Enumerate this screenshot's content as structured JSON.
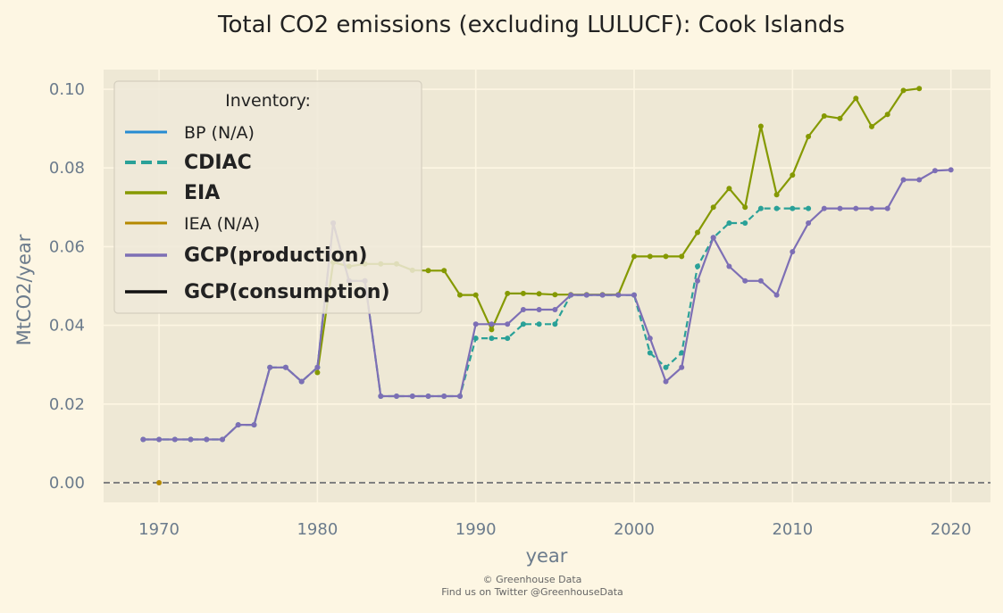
{
  "chart_data": {
    "type": "line",
    "title": "Total CO2 emissions (excluding LULUCF): Cook Islands",
    "xlabel": "year",
    "ylabel": "MtCO2/year",
    "xlim": [
      1966.5,
      2022.5
    ],
    "ylim": [
      -0.005,
      0.105
    ],
    "xticks": [
      1970,
      1980,
      1990,
      2000,
      2010,
      2020
    ],
    "yticks": [
      0.0,
      0.02,
      0.04,
      0.06,
      0.08,
      0.1
    ],
    "xtick_labels": [
      "1970",
      "1980",
      "1990",
      "2000",
      "2010",
      "2020"
    ],
    "ytick_labels": [
      "0.00",
      "0.02",
      "0.04",
      "0.06",
      "0.08",
      "0.10"
    ],
    "grid": true,
    "zero_line": true,
    "legend": {
      "title": "Inventory:",
      "placement": "top-left",
      "entries": [
        {
          "label": "BP (N/A)",
          "color": "#268bd2",
          "style": "solid",
          "bold": false
        },
        {
          "label": "CDIAC",
          "color": "#2aa198",
          "style": "dashed",
          "bold": true
        },
        {
          "label": "EIA",
          "color": "#859900",
          "style": "solid",
          "bold": true
        },
        {
          "label": "IEA (N/A)",
          "color": "#b58900",
          "style": "solid",
          "bold": false
        },
        {
          "label": "GCP(production)",
          "color": "#7d6fb5",
          "style": "solid",
          "bold": true
        },
        {
          "label": "GCP(consumption)",
          "color": "#111111",
          "style": "solid",
          "bold": true
        }
      ]
    },
    "series": [
      {
        "name": "CDIAC",
        "color": "#2aa198",
        "style": "dashed",
        "x": [
          1969,
          1970,
          1971,
          1972,
          1973,
          1974,
          1975,
          1976,
          1977,
          1978,
          1979,
          1980,
          1981,
          1982,
          1983,
          1984,
          1985,
          1986,
          1987,
          1988,
          1989,
          1990,
          1991,
          1992,
          1993,
          1994,
          1995,
          1996,
          1997,
          1998,
          1999,
          2000,
          2001,
          2002,
          2003,
          2004,
          2005,
          2006,
          2007,
          2008,
          2009,
          2010,
          2011
        ],
        "y": [
          0.011,
          0.011,
          0.011,
          0.011,
          0.011,
          0.011,
          0.0147,
          0.0147,
          0.0293,
          0.0293,
          0.0257,
          0.0293,
          0.066,
          0.0513,
          0.0513,
          0.022,
          0.022,
          0.022,
          0.022,
          0.022,
          0.022,
          0.0367,
          0.0367,
          0.0367,
          0.0403,
          0.0403,
          0.0403,
          0.0477,
          0.0477,
          0.0477,
          0.0477,
          0.0477,
          0.033,
          0.0293,
          0.033,
          0.055,
          0.0623,
          0.066,
          0.066,
          0.0697,
          0.0697,
          0.0697,
          0.0697
        ]
      },
      {
        "name": "EIA",
        "color": "#859900",
        "style": "solid",
        "x": [
          1980,
          1981,
          1982,
          1983,
          1984,
          1985,
          1986,
          1987,
          1988,
          1989,
          1990,
          1991,
          1992,
          1993,
          1994,
          1995,
          1996,
          1997,
          1998,
          1999,
          2000,
          2001,
          2002,
          2003,
          2004,
          2005,
          2006,
          2007,
          2008,
          2009,
          2010,
          2011,
          2012,
          2013,
          2014,
          2015,
          2016,
          2017,
          2018
        ],
        "y": [
          0.028,
          0.056,
          0.055,
          0.0556,
          0.0556,
          0.0556,
          0.054,
          0.0539,
          0.0539,
          0.0477,
          0.0477,
          0.0389,
          0.0481,
          0.0481,
          0.048,
          0.0478,
          0.0478,
          0.0478,
          0.0478,
          0.0478,
          0.0575,
          0.0575,
          0.0575,
          0.0575,
          0.0636,
          0.07,
          0.0748,
          0.07,
          0.0906,
          0.0732,
          0.0782,
          0.088,
          0.0932,
          0.0926,
          0.0977,
          0.0905,
          0.0936,
          0.0997,
          0.1002
        ]
      },
      {
        "name": "IEA (N/A)",
        "color": "#b58900",
        "style": "points",
        "x": [
          1970
        ],
        "y": [
          0.0
        ]
      },
      {
        "name": "GCP(production)",
        "color": "#7d6fb5",
        "style": "solid",
        "x": [
          1969,
          1970,
          1971,
          1972,
          1973,
          1974,
          1975,
          1976,
          1977,
          1978,
          1979,
          1980,
          1981,
          1982,
          1983,
          1984,
          1985,
          1986,
          1987,
          1988,
          1989,
          1990,
          1991,
          1992,
          1993,
          1994,
          1995,
          1996,
          1997,
          1998,
          1999,
          2000,
          2001,
          2002,
          2003,
          2004,
          2005,
          2006,
          2007,
          2008,
          2009,
          2010,
          2011,
          2012,
          2013,
          2014,
          2015,
          2016,
          2017,
          2018,
          2019,
          2020
        ],
        "y": [
          0.011,
          0.011,
          0.011,
          0.011,
          0.011,
          0.011,
          0.0147,
          0.0147,
          0.0293,
          0.0293,
          0.0257,
          0.0293,
          0.066,
          0.0513,
          0.0513,
          0.022,
          0.022,
          0.022,
          0.022,
          0.022,
          0.022,
          0.0403,
          0.0403,
          0.0403,
          0.044,
          0.044,
          0.044,
          0.0477,
          0.0477,
          0.0477,
          0.0477,
          0.0477,
          0.0367,
          0.0257,
          0.0293,
          0.0513,
          0.0623,
          0.055,
          0.0513,
          0.0513,
          0.0477,
          0.0587,
          0.066,
          0.0697,
          0.0697,
          0.0697,
          0.0697,
          0.0697,
          0.077,
          0.077,
          0.0793,
          0.0795
        ]
      }
    ]
  },
  "footer": {
    "line1": "© Greenhouse Data",
    "line2": "Find us on Twitter @GreenhouseData"
  },
  "colors": {
    "page_bg": "#fdf6e3",
    "plot_bg": "#eee8d5",
    "grid": "#fdf6e3",
    "legend_bg": "#efe9d9",
    "zero_line": "#808080"
  }
}
